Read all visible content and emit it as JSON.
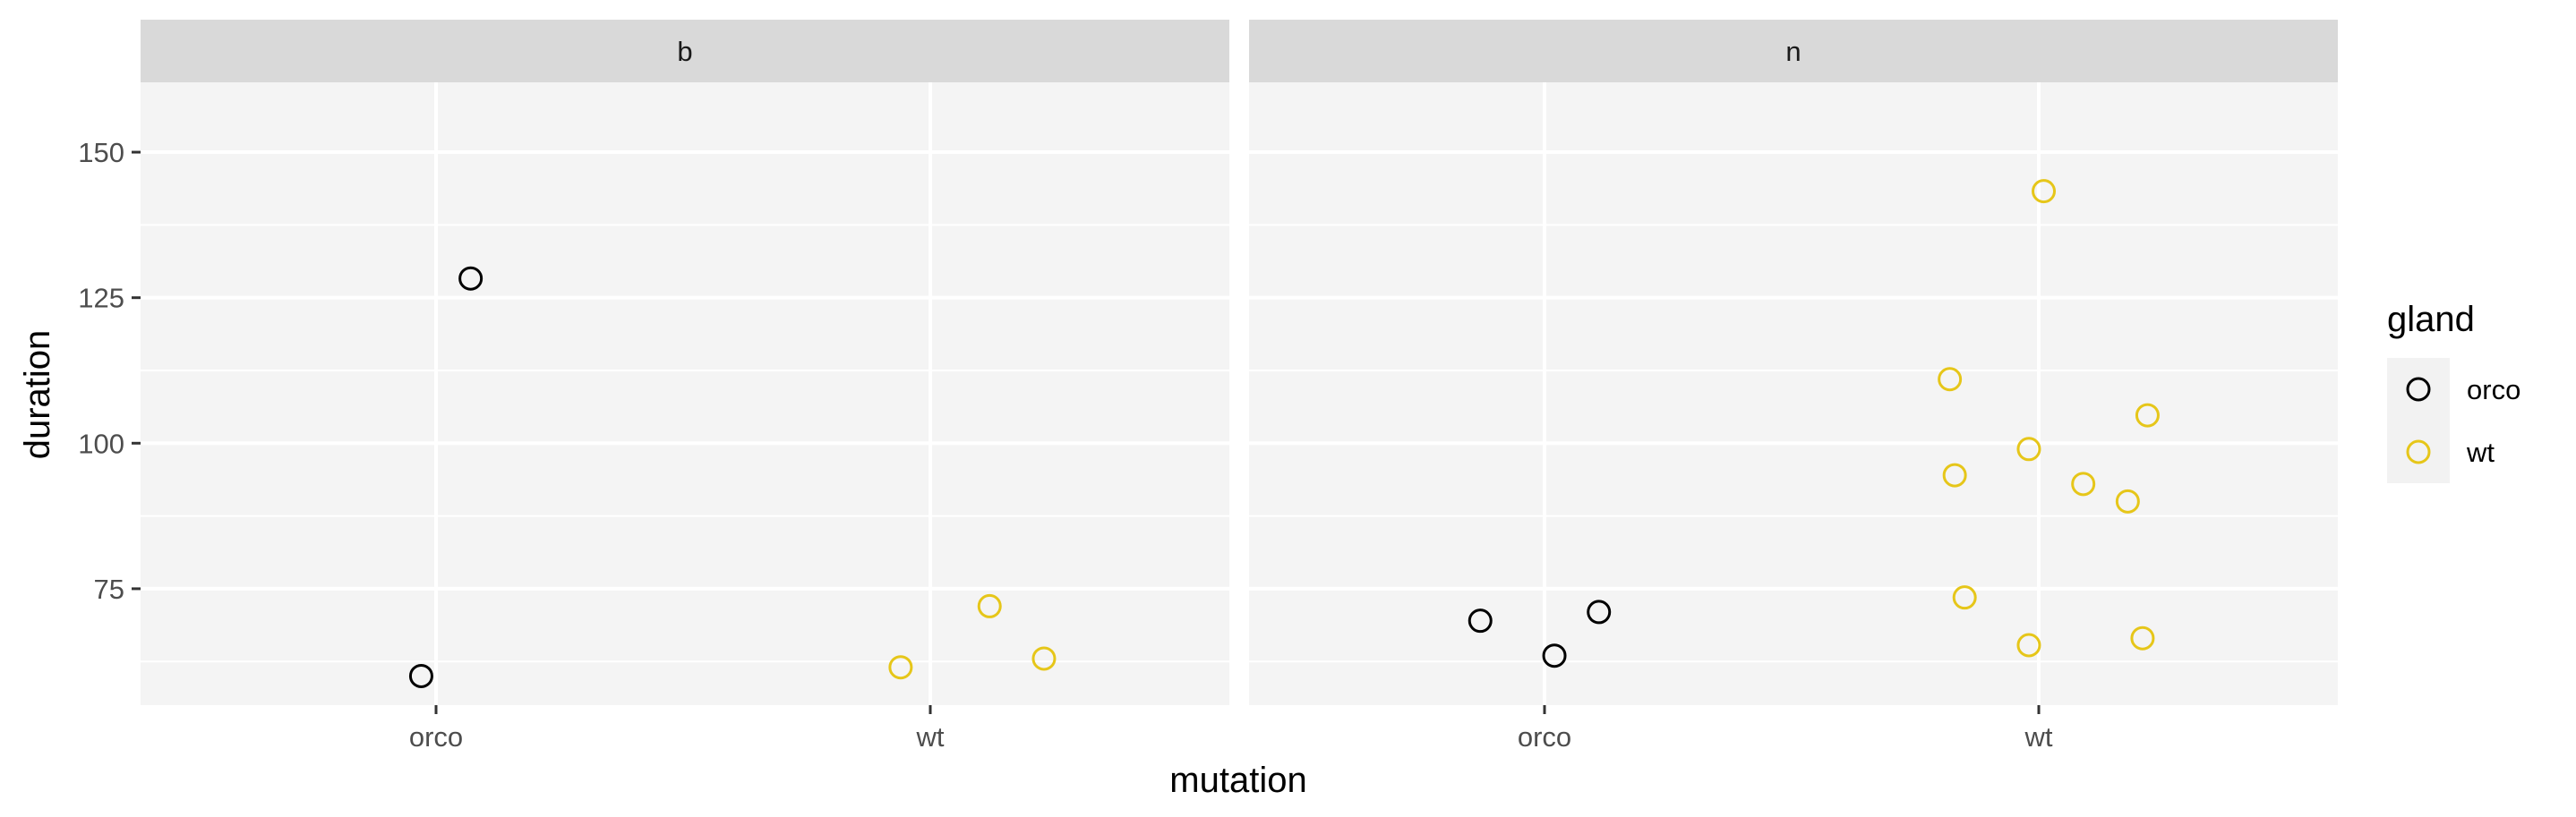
{
  "chart_data": {
    "type": "scatter",
    "xlabel": "mutation",
    "ylabel": "duration",
    "categories": [
      "orco",
      "wt"
    ],
    "ylim": [
      55,
      162
    ],
    "yticks": [
      75,
      100,
      125,
      150
    ],
    "grid": true,
    "legend": {
      "title": "gland",
      "position": "right",
      "entries": [
        {
          "name": "orco",
          "color": "#000000"
        },
        {
          "name": "wt",
          "color": "#E6C619"
        }
      ]
    },
    "facets": [
      {
        "label": "b",
        "points": [
          {
            "x": "orco",
            "jitter": 0.07,
            "y": 128.3,
            "gland": "orco"
          },
          {
            "x": "orco",
            "jitter": -0.03,
            "y": 60.0,
            "gland": "orco"
          },
          {
            "x": "wt",
            "jitter": -0.06,
            "y": 61.5,
            "gland": "wt"
          },
          {
            "x": "wt",
            "jitter": 0.12,
            "y": 72.0,
            "gland": "wt"
          },
          {
            "x": "wt",
            "jitter": 0.23,
            "y": 63.0,
            "gland": "wt"
          }
        ]
      },
      {
        "label": "n",
        "points": [
          {
            "x": "orco",
            "jitter": -0.13,
            "y": 69.5,
            "gland": "orco"
          },
          {
            "x": "orco",
            "jitter": 0.02,
            "y": 63.5,
            "gland": "orco"
          },
          {
            "x": "orco",
            "jitter": 0.11,
            "y": 71.0,
            "gland": "orco"
          },
          {
            "x": "wt",
            "jitter": 0.01,
            "y": 143.3,
            "gland": "wt"
          },
          {
            "x": "wt",
            "jitter": -0.18,
            "y": 111.0,
            "gland": "wt"
          },
          {
            "x": "wt",
            "jitter": 0.22,
            "y": 104.8,
            "gland": "wt"
          },
          {
            "x": "wt",
            "jitter": -0.02,
            "y": 99.0,
            "gland": "wt"
          },
          {
            "x": "wt",
            "jitter": -0.17,
            "y": 94.5,
            "gland": "wt"
          },
          {
            "x": "wt",
            "jitter": 0.09,
            "y": 93.0,
            "gland": "wt"
          },
          {
            "x": "wt",
            "jitter": 0.18,
            "y": 90.0,
            "gland": "wt"
          },
          {
            "x": "wt",
            "jitter": -0.15,
            "y": 73.5,
            "gland": "wt"
          },
          {
            "x": "wt",
            "jitter": -0.02,
            "y": 65.3,
            "gland": "wt"
          },
          {
            "x": "wt",
            "jitter": 0.21,
            "y": 66.5,
            "gland": "wt"
          }
        ]
      }
    ]
  }
}
